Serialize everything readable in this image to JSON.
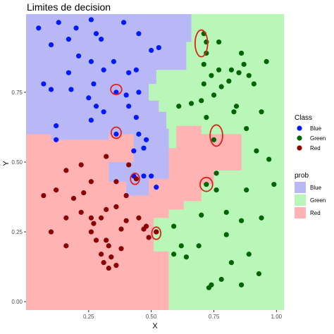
{
  "chart_data": {
    "type": "scatter",
    "title": "Limites de decision",
    "xlabel": "X",
    "ylabel": "Y",
    "xlim": [
      0.0,
      1.03
    ],
    "ylim": [
      -0.03,
      1.03
    ],
    "x_ticks": [
      0.25,
      0.5,
      0.75,
      1.0
    ],
    "y_ticks": [
      0.0,
      0.25,
      0.5,
      0.75
    ],
    "x_tick_labels": [
      "0.25",
      "0.50",
      "0.75",
      "1.00"
    ],
    "y_tick_labels": [
      "0.00",
      "0.25",
      "0.50",
      "0.75"
    ],
    "grid": false,
    "legend_class": {
      "title": "Class",
      "entries": [
        {
          "label": "Blue",
          "color": "#0019ff"
        },
        {
          "label": "Green",
          "color": "#006400"
        },
        {
          "label": "Red",
          "color": "#8b0000"
        }
      ]
    },
    "legend_prob": {
      "title": "prob",
      "entries": [
        {
          "label": "Blue",
          "color": "#b8b8f7"
        },
        {
          "label": "Green",
          "color": "#b8f7b8"
        },
        {
          "label": "Red",
          "color": "#ffb3b3"
        }
      ]
    },
    "regions": [
      {
        "class": "Blue",
        "color": "#b8b8f7",
        "polygon": [
          [
            0.0,
            1.03
          ],
          [
            0.66,
            1.03
          ],
          [
            0.66,
            0.93
          ],
          [
            0.64,
            0.93
          ],
          [
            0.64,
            0.83
          ],
          [
            0.52,
            0.83
          ],
          [
            0.52,
            0.78
          ],
          [
            0.49,
            0.78
          ],
          [
            0.49,
            0.72
          ],
          [
            0.53,
            0.72
          ],
          [
            0.53,
            0.68
          ],
          [
            0.56,
            0.68
          ],
          [
            0.56,
            0.62
          ],
          [
            0.6,
            0.62
          ],
          [
            0.6,
            0.55
          ],
          [
            0.57,
            0.55
          ],
          [
            0.57,
            0.44
          ],
          [
            0.49,
            0.44
          ],
          [
            0.49,
            0.38
          ],
          [
            0.4,
            0.38
          ],
          [
            0.4,
            0.43
          ],
          [
            0.33,
            0.43
          ],
          [
            0.33,
            0.5
          ],
          [
            0.43,
            0.5
          ],
          [
            0.43,
            0.6
          ],
          [
            0.33,
            0.6
          ],
          [
            0.33,
            0.58
          ],
          [
            0.1,
            0.58
          ],
          [
            0.1,
            0.6
          ],
          [
            0.0,
            0.6
          ]
        ]
      },
      {
        "class": "Green",
        "color": "#b8f7b8",
        "polygon": [
          [
            0.66,
            1.03
          ],
          [
            1.03,
            1.03
          ],
          [
            1.03,
            -0.03
          ],
          [
            0.57,
            -0.03
          ],
          [
            0.57,
            0.18
          ],
          [
            0.51,
            0.18
          ],
          [
            0.51,
            0.3
          ],
          [
            0.57,
            0.3
          ],
          [
            0.57,
            0.33
          ],
          [
            0.63,
            0.33
          ],
          [
            0.63,
            0.36
          ],
          [
            0.7,
            0.36
          ],
          [
            0.7,
            0.42
          ],
          [
            0.75,
            0.42
          ],
          [
            0.75,
            0.47
          ],
          [
            0.86,
            0.47
          ],
          [
            0.86,
            0.6
          ],
          [
            0.7,
            0.6
          ],
          [
            0.7,
            0.63
          ],
          [
            0.6,
            0.63
          ],
          [
            0.6,
            0.55
          ],
          [
            0.57,
            0.55
          ],
          [
            0.57,
            0.62
          ],
          [
            0.56,
            0.62
          ],
          [
            0.56,
            0.68
          ],
          [
            0.53,
            0.68
          ],
          [
            0.53,
            0.72
          ],
          [
            0.49,
            0.72
          ],
          [
            0.49,
            0.78
          ],
          [
            0.52,
            0.78
          ],
          [
            0.52,
            0.83
          ],
          [
            0.64,
            0.83
          ],
          [
            0.64,
            0.93
          ],
          [
            0.66,
            0.93
          ]
        ]
      }
    ],
    "background_class": "Red",
    "background_color": "#ffb3b3",
    "series": [
      {
        "name": "Blue",
        "color": "#0019ff",
        "points": [
          [
            0.05,
            0.98
          ],
          [
            0.13,
            1.0
          ],
          [
            0.2,
            0.98
          ],
          [
            0.26,
            1.01
          ],
          [
            0.39,
            1.0
          ],
          [
            0.1,
            0.92
          ],
          [
            0.17,
            0.94
          ],
          [
            0.28,
            0.96
          ],
          [
            0.3,
            0.94
          ],
          [
            0.45,
            0.96
          ],
          [
            0.21,
            0.88
          ],
          [
            0.26,
            0.86
          ],
          [
            0.35,
            0.86
          ],
          [
            0.5,
            0.9
          ],
          [
            0.53,
            0.91
          ],
          [
            0.17,
            0.82
          ],
          [
            0.31,
            0.83
          ],
          [
            0.41,
            0.82
          ],
          [
            0.44,
            0.83
          ],
          [
            0.07,
            0.78
          ],
          [
            0.1,
            0.76
          ],
          [
            0.18,
            0.76
          ],
          [
            0.27,
            0.78
          ],
          [
            0.36,
            0.75
          ],
          [
            0.25,
            0.73
          ],
          [
            0.4,
            0.74
          ],
          [
            0.45,
            0.75
          ],
          [
            0.28,
            0.7
          ],
          [
            0.31,
            0.68
          ],
          [
            0.41,
            0.7
          ],
          [
            0.12,
            0.63
          ],
          [
            0.26,
            0.65
          ],
          [
            0.44,
            0.66
          ],
          [
            0.36,
            0.6
          ],
          [
            0.12,
            0.58
          ],
          [
            0.45,
            0.6
          ],
          [
            0.47,
            0.55
          ],
          [
            0.43,
            0.54
          ],
          [
            0.48,
            0.58
          ],
          [
            0.43,
            0.45
          ],
          [
            0.47,
            0.45
          ],
          [
            0.52,
            0.41
          ],
          [
            0.5,
            0.45
          ]
        ]
      },
      {
        "name": "Green",
        "color": "#006400",
        "points": [
          [
            0.71,
            0.96
          ],
          [
            0.72,
            0.93
          ],
          [
            0.72,
            0.89
          ],
          [
            0.77,
            0.93
          ],
          [
            0.86,
            0.89
          ],
          [
            0.96,
            0.86
          ],
          [
            0.71,
            0.85
          ],
          [
            0.77,
            0.83
          ],
          [
            0.82,
            0.83
          ],
          [
            0.85,
            0.82
          ],
          [
            0.87,
            0.85
          ],
          [
            0.89,
            0.81
          ],
          [
            0.91,
            0.78
          ],
          [
            0.74,
            0.81
          ],
          [
            0.81,
            0.79
          ],
          [
            0.71,
            0.78
          ],
          [
            0.78,
            0.77
          ],
          [
            0.7,
            0.72
          ],
          [
            0.75,
            0.74
          ],
          [
            0.84,
            0.7
          ],
          [
            0.66,
            0.71
          ],
          [
            0.61,
            0.7
          ],
          [
            0.83,
            0.68
          ],
          [
            0.94,
            0.68
          ],
          [
            0.72,
            0.66
          ],
          [
            0.88,
            0.62
          ],
          [
            0.75,
            0.58
          ],
          [
            0.92,
            0.54
          ],
          [
            0.97,
            0.51
          ],
          [
            0.76,
            0.46
          ],
          [
            0.72,
            0.42
          ],
          [
            0.88,
            0.4
          ],
          [
            0.76,
            0.4
          ],
          [
            0.99,
            0.42
          ],
          [
            0.94,
            0.3
          ],
          [
            0.86,
            0.29
          ],
          [
            0.8,
            0.32
          ],
          [
            0.7,
            0.31
          ],
          [
            0.59,
            0.27
          ],
          [
            0.69,
            0.2
          ],
          [
            0.62,
            0.2
          ],
          [
            0.8,
            0.24
          ],
          [
            0.59,
            0.17
          ],
          [
            0.82,
            0.14
          ],
          [
            0.64,
            0.16
          ],
          [
            0.89,
            0.17
          ],
          [
            0.93,
            0.1
          ],
          [
            0.78,
            0.08
          ],
          [
            0.86,
            0.06
          ],
          [
            0.73,
            0.05
          ],
          [
            0.74,
            0.06
          ]
        ]
      },
      {
        "name": "Red",
        "color": "#8b0000",
        "points": [
          [
            0.16,
            0.47
          ],
          [
            0.22,
            0.49
          ],
          [
            0.32,
            0.52
          ],
          [
            0.41,
            0.49
          ],
          [
            0.44,
            0.44
          ],
          [
            0.36,
            0.43
          ],
          [
            0.12,
            0.4
          ],
          [
            0.26,
            0.43
          ],
          [
            0.07,
            0.38
          ],
          [
            0.23,
            0.39
          ],
          [
            0.4,
            0.38
          ],
          [
            0.19,
            0.37
          ],
          [
            0.22,
            0.32
          ],
          [
            0.26,
            0.3
          ],
          [
            0.27,
            0.28
          ],
          [
            0.3,
            0.3
          ],
          [
            0.32,
            0.33
          ],
          [
            0.4,
            0.29
          ],
          [
            0.45,
            0.3
          ],
          [
            0.47,
            0.26
          ],
          [
            0.48,
            0.27
          ],
          [
            0.52,
            0.25
          ],
          [
            0.38,
            0.26
          ],
          [
            0.36,
            0.34
          ],
          [
            0.1,
            0.25
          ],
          [
            0.16,
            0.3
          ],
          [
            0.26,
            0.25
          ],
          [
            0.28,
            0.22
          ],
          [
            0.32,
            0.22
          ],
          [
            0.33,
            0.2
          ],
          [
            0.16,
            0.2
          ],
          [
            0.38,
            0.19
          ],
          [
            0.3,
            0.17
          ],
          [
            0.31,
            0.14
          ],
          [
            0.34,
            0.16
          ],
          [
            0.36,
            0.13
          ],
          [
            0.33,
            0.12
          ],
          [
            0.52,
            0.25
          ],
          [
            0.49,
            0.23
          ]
        ]
      }
    ],
    "highlights": [
      {
        "x": 0.7,
        "y": 0.925,
        "rx": 0.025,
        "ry": 0.048
      },
      {
        "x": 0.36,
        "y": 0.76,
        "rx": 0.022,
        "ry": 0.018
      },
      {
        "x": 0.36,
        "y": 0.605,
        "rx": 0.02,
        "ry": 0.02
      },
      {
        "x": 0.76,
        "y": 0.595,
        "rx": 0.025,
        "ry": 0.038
      },
      {
        "x": 0.435,
        "y": 0.44,
        "rx": 0.018,
        "ry": 0.02
      },
      {
        "x": 0.72,
        "y": 0.42,
        "rx": 0.025,
        "ry": 0.025
      },
      {
        "x": 0.52,
        "y": 0.245,
        "rx": 0.018,
        "ry": 0.022
      }
    ]
  }
}
